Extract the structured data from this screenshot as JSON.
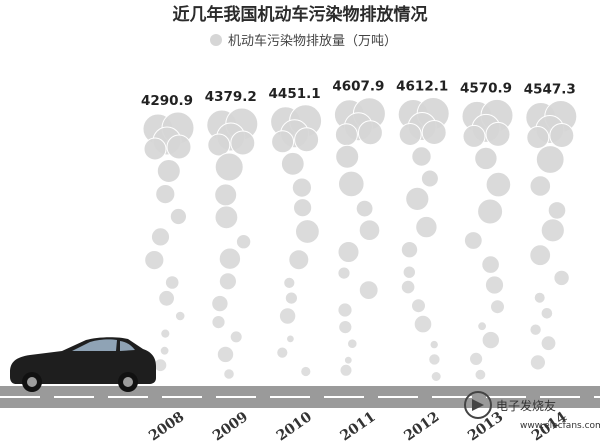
{
  "chart_data": {
    "type": "bar",
    "title": "近几年我国机动车污染物排放情况",
    "categories": [
      "2008",
      "2009",
      "2010",
      "2011",
      "2012",
      "2013",
      "2014"
    ],
    "series": [
      {
        "name": "机动车污染物排放量（万吨）",
        "values": [
          4290.9,
          4379.2,
          4451.1,
          4607.9,
          4612.1,
          4570.9,
          4547.3
        ]
      }
    ],
    "value_labels": [
      "4290.9",
      "4379.2",
      "4451.1",
      "4607.9",
      "4612.1",
      "4570.9",
      "4547.3"
    ],
    "legend_position": "top-center",
    "grid": false,
    "bubble_color": "#d6d6d6"
  },
  "watermark": {
    "text": "电子发烧友",
    "subtext": "www.elecfans.com"
  }
}
